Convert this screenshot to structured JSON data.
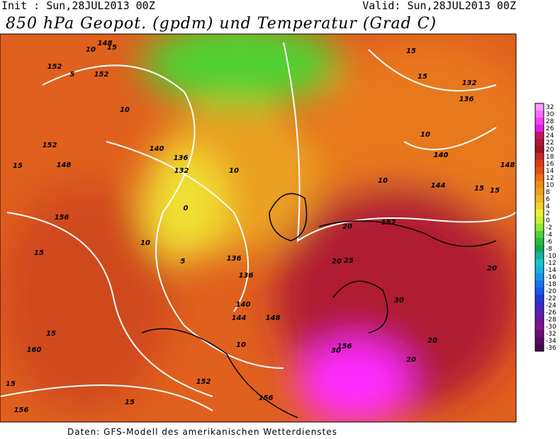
{
  "header": {
    "init": "Init : Sun,28JUL2013 00Z",
    "valid": "Valid: Sun,28JUL2013 00Z",
    "title": "850 hPa Geopot. (gpdm) und Temperatur (Grad C)"
  },
  "colorbar": {
    "steps": [
      {
        "value": 32,
        "color": "#ff9cff"
      },
      {
        "value": 30,
        "color": "#ff6eff"
      },
      {
        "value": 28,
        "color": "#ff3cff"
      },
      {
        "value": 26,
        "color": "#e61ee6"
      },
      {
        "value": 24,
        "color": "#c81464"
      },
      {
        "value": 22,
        "color": "#b4143c"
      },
      {
        "value": 20,
        "color": "#a01428"
      },
      {
        "value": 18,
        "color": "#c82828"
      },
      {
        "value": 16,
        "color": "#dc3c14"
      },
      {
        "value": 14,
        "color": "#e65014"
      },
      {
        "value": 12,
        "color": "#f06e14"
      },
      {
        "value": 10,
        "color": "#f08c14"
      },
      {
        "value": 8,
        "color": "#f0a014"
      },
      {
        "value": 6,
        "color": "#f0b428"
      },
      {
        "value": 4,
        "color": "#f0d228"
      },
      {
        "value": 2,
        "color": "#f0f032"
      },
      {
        "value": 0,
        "color": "#c8f032"
      },
      {
        "value": -2,
        "color": "#8ce632"
      },
      {
        "value": -4,
        "color": "#50d232"
      },
      {
        "value": -6,
        "color": "#28be3c"
      },
      {
        "value": -8,
        "color": "#14aa50"
      },
      {
        "value": -10,
        "color": "#14b4a0"
      },
      {
        "value": -12,
        "color": "#14c8c8"
      },
      {
        "value": -14,
        "color": "#14b4e6"
      },
      {
        "value": -16,
        "color": "#1496f0"
      },
      {
        "value": -18,
        "color": "#1478f0"
      },
      {
        "value": -20,
        "color": "#145af0"
      },
      {
        "value": -22,
        "color": "#1e3cdc"
      },
      {
        "value": -24,
        "color": "#3c28c8"
      },
      {
        "value": -26,
        "color": "#5a1eb4"
      },
      {
        "value": -28,
        "color": "#6e14a0"
      },
      {
        "value": -30,
        "color": "#82148c"
      },
      {
        "value": -32,
        "color": "#6e0a78"
      },
      {
        "value": -34,
        "color": "#5a0a64"
      },
      {
        "value": -36,
        "color": "#460a50"
      }
    ]
  },
  "map_labels": [
    "152",
    "10",
    "5",
    "152",
    "10",
    "140",
    "136",
    "132",
    "148",
    "15",
    "148",
    "15",
    "152",
    "15",
    "132",
    "136",
    "10",
    "140",
    "148",
    "15",
    "10",
    "144",
    "15",
    "15",
    "156",
    "15",
    "10",
    "5",
    "136",
    "136",
    "140",
    "144",
    "148",
    "152",
    "20",
    "25",
    "20",
    "30",
    "30",
    "156",
    "20",
    "20",
    "20",
    "160",
    "15",
    "15",
    "156",
    "152",
    "15",
    "156",
    "10",
    "10",
    "0",
    "140"
  ],
  "footer": "Daten: GFS-Modell des amerikanischen Wetterdienstes"
}
